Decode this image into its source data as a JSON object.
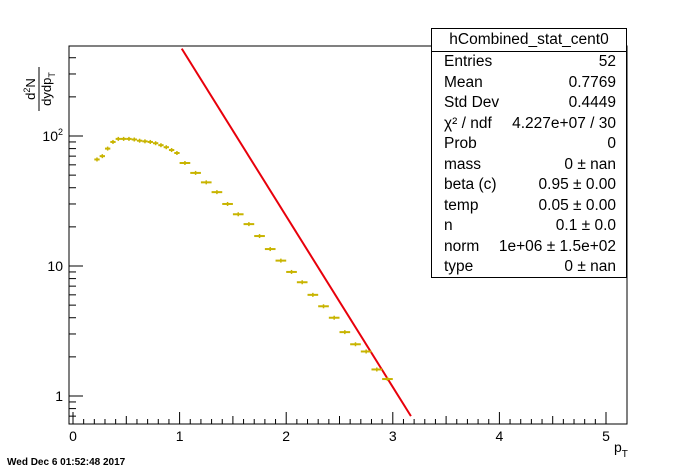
{
  "stats_box": {
    "title": "hCombined_stat_cent0",
    "rows": [
      {
        "key": "Entries",
        "value": "52"
      },
      {
        "key": "Mean",
        "value": "0.7769"
      },
      {
        "key": "Std Dev",
        "value": "0.4449"
      },
      {
        "key": "χ² / ndf",
        "value": "4.227e+07 / 30"
      },
      {
        "key": "Prob",
        "value": "0"
      },
      {
        "key": "mass",
        "value": "0 ± nan"
      },
      {
        "key": "beta (c)",
        "value": "0.95 ± 0.00"
      },
      {
        "key": "temp",
        "value": "0.05 ± 0.00"
      },
      {
        "key": "n",
        "value": "0.1 ± 0.0"
      },
      {
        "key": "norm",
        "value": "1e+06 ± 1.5e+02"
      },
      {
        "key": "type",
        "value": "0 ± nan"
      }
    ]
  },
  "timestamp": "Wed Dec  6 01:52:48 2017",
  "chart_data": {
    "type": "scatter",
    "title": "",
    "xlabel": "p_T",
    "ylabel": "d²N/dydp_T",
    "x_ticks": [
      "0",
      "1",
      "2",
      "3",
      "4",
      "5"
    ],
    "y_ticks": [
      "1",
      "10",
      "10²"
    ],
    "xlim": [
      0,
      5.2
    ],
    "ylim": [
      0.7,
      470
    ],
    "y_scale": "log",
    "colors": {
      "points": "#c8b400",
      "fit": "#e8000b"
    },
    "series": [
      {
        "kind": "histogram",
        "x": [
          0.225,
          0.275,
          0.325,
          0.375,
          0.425,
          0.475,
          0.525,
          0.575,
          0.625,
          0.675,
          0.725,
          0.775,
          0.825,
          0.875,
          0.925,
          0.975,
          1.05,
          1.15,
          1.25,
          1.35,
          1.45,
          1.55,
          1.65,
          1.75,
          1.85,
          1.95,
          2.05,
          2.15,
          2.25,
          2.35,
          2.45,
          2.55,
          2.65,
          2.75,
          2.85,
          2.95
        ],
        "y": [
          66,
          70,
          80,
          90,
          95,
          95,
          95,
          94,
          92,
          91,
          90,
          88,
          85,
          82,
          78,
          74,
          62,
          52,
          44,
          37,
          30,
          25,
          21,
          17,
          13.5,
          11,
          9,
          7.5,
          6,
          4.9,
          4,
          3.1,
          2.5,
          2.2,
          1.6,
          1.35
        ],
        "xerr": [
          0.025,
          0.025,
          0.025,
          0.025,
          0.025,
          0.025,
          0.025,
          0.025,
          0.025,
          0.025,
          0.025,
          0.025,
          0.025,
          0.025,
          0.025,
          0.025,
          0.05,
          0.05,
          0.05,
          0.05,
          0.05,
          0.05,
          0.05,
          0.05,
          0.05,
          0.05,
          0.05,
          0.05,
          0.05,
          0.05,
          0.05,
          0.05,
          0.05,
          0.05,
          0.05,
          0.05
        ]
      },
      {
        "kind": "fit",
        "x": [
          1.02,
          3.17
        ],
        "y": [
          470,
          0.7
        ]
      }
    ]
  }
}
